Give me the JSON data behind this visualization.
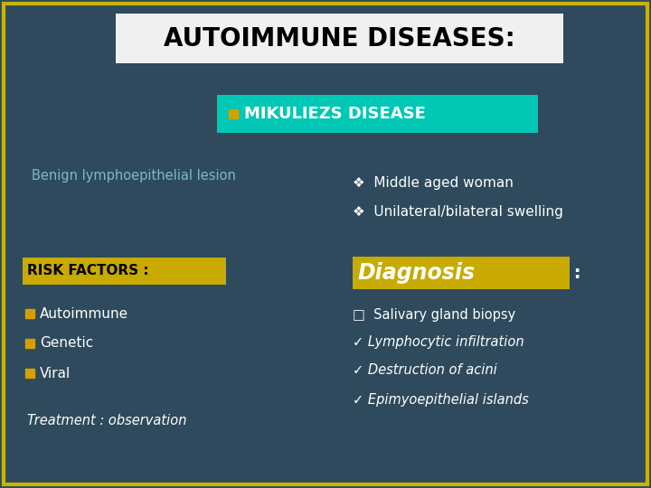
{
  "bg_color": "#2e4a5c",
  "border_color": "#c8b400",
  "title_text": "AUTOIMMUNE DISEASES:",
  "title_bg": "#f0f0f0",
  "title_text_color": "#000000",
  "subtitle_bg": "#00c8b4",
  "subtitle_text_color": "#ffffff",
  "subtitle_bullet_color": "#d4a000",
  "benign_text": "Benign lymphoepithelial lesion",
  "benign_color": "#80b8d0",
  "right_bullet": "❖",
  "right_item1": "Middle aged woman",
  "right_item2": "Unilateral/bilateral swelling",
  "right_items_color": "#ffffff",
  "risk_label": "RISK FACTORS :",
  "risk_label_bg": "#c8aa00",
  "risk_label_color": "#000000",
  "risk_items": [
    "Autoimmune",
    "Genetic",
    "Viral"
  ],
  "risk_items_color": "#ffffff",
  "risk_bullet_color": "#d4a000",
  "treatment_text": "Treatment : observation",
  "treatment_color": "#ffffff",
  "diagnosis_text": "Diagnosis",
  "diagnosis_colon": " :",
  "diagnosis_bg": "#c8aa00",
  "diagnosis_text_color": "#ffffff",
  "diagnosis_colon_color": "#ffffff",
  "diag_item0": "□  Salivary gland biopsy",
  "diag_item1": "✓ Lymphocytic infiltration",
  "diag_item2": "✓ Destruction of acini",
  "diag_item3": "✓ Epimyoepithelial islands",
  "diag_items_color": "#ffffff"
}
